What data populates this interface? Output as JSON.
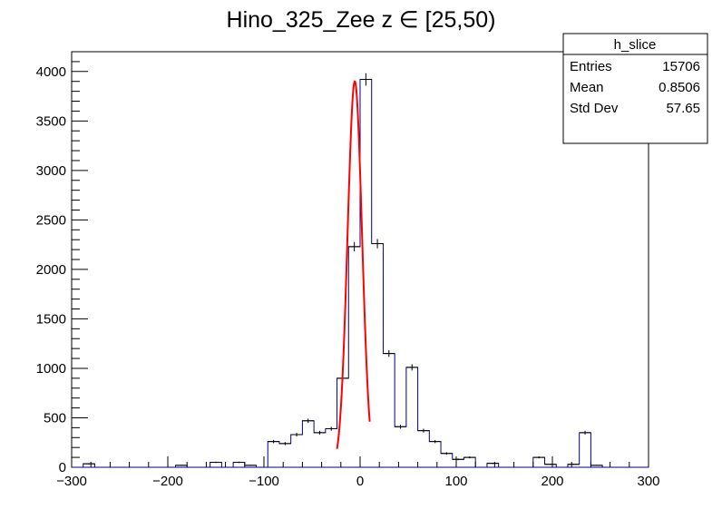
{
  "chart_data": {
    "type": "bar",
    "title": "Hino_325_Zee z  ∈ [25,50)",
    "xlabel": "",
    "ylabel": "",
    "xlim": [
      -300,
      300
    ],
    "ylim": [
      0,
      4200
    ],
    "grid": false,
    "bin_width": 12,
    "x_tick_labels": [
      "−300",
      "−200",
      "−100",
      "0",
      "100",
      "200",
      "300"
    ],
    "y_tick_labels": [
      "0",
      "500",
      "1000",
      "1500",
      "2000",
      "2500",
      "3000",
      "3500",
      "4000"
    ],
    "series": [
      {
        "style": "histogram-with-errors",
        "color": "#000080",
        "bin_edges": [
          -288,
          -276,
          -264,
          -252,
          -240,
          -228,
          -216,
          -204,
          -192,
          -180,
          -168,
          -156,
          -144,
          -132,
          -120,
          -108,
          -96,
          -84,
          -72,
          -60,
          -48,
          -36,
          -24,
          -12,
          0,
          12,
          24,
          36,
          48,
          60,
          72,
          84,
          96,
          108,
          120,
          132,
          144,
          156,
          168,
          180,
          192,
          204,
          216,
          228,
          240,
          252,
          264,
          276,
          288,
          300
        ],
        "values": [
          35,
          0,
          0,
          0,
          0,
          0,
          0,
          0,
          20,
          0,
          0,
          50,
          0,
          50,
          20,
          0,
          260,
          240,
          330,
          470,
          350,
          390,
          900,
          2230,
          3920,
          2260,
          1150,
          410,
          1010,
          370,
          260,
          140,
          80,
          100,
          0,
          40,
          0,
          0,
          0,
          100,
          30,
          0,
          30,
          350,
          20,
          0,
          0,
          0,
          0
        ]
      },
      {
        "name": "fit",
        "style": "gaussian",
        "color": "#ff0000",
        "mean": -5.5,
        "sigma": 7.5,
        "amplitude": 3900,
        "range": [
          -24,
          10
        ]
      }
    ]
  },
  "stats_box": {
    "title": "h_slice",
    "rows": [
      {
        "label": "Entries",
        "value": "15706"
      },
      {
        "label": "Mean",
        "value": "0.8506"
      },
      {
        "label": "Std Dev",
        "value": "57.65"
      }
    ]
  }
}
